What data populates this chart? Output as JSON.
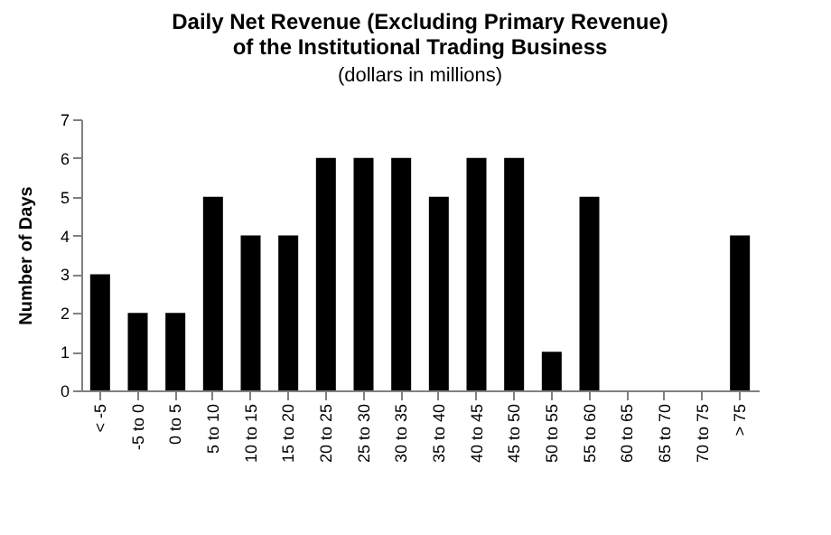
{
  "chart_data": {
    "type": "bar",
    "title": "Daily Net Revenue (Excluding Primary Revenue)\nof the Institutional Trading Business",
    "subtitle": "(dollars in millions)",
    "ylabel": "Number of Days",
    "categories": [
      "< -5",
      "-5 to 0",
      "0 to 5",
      "5 to 10",
      "10 to 15",
      "15 to 20",
      "20 to 25",
      "25 to 30",
      "30 to 35",
      "35 to 40",
      "40 to 45",
      "45 to 50",
      "50 to 55",
      "55 to 60",
      "60 to 65",
      "65 to 70",
      "70 to 75",
      "> 75"
    ],
    "values": [
      3,
      2,
      2,
      5,
      4,
      4,
      6,
      6,
      6,
      5,
      6,
      6,
      1,
      5,
      0,
      0,
      0,
      4
    ],
    "color": "#000000",
    "ylim": [
      0,
      7
    ],
    "yticks": [
      0,
      1,
      2,
      3,
      4,
      5,
      6,
      7
    ],
    "grid": false
  }
}
